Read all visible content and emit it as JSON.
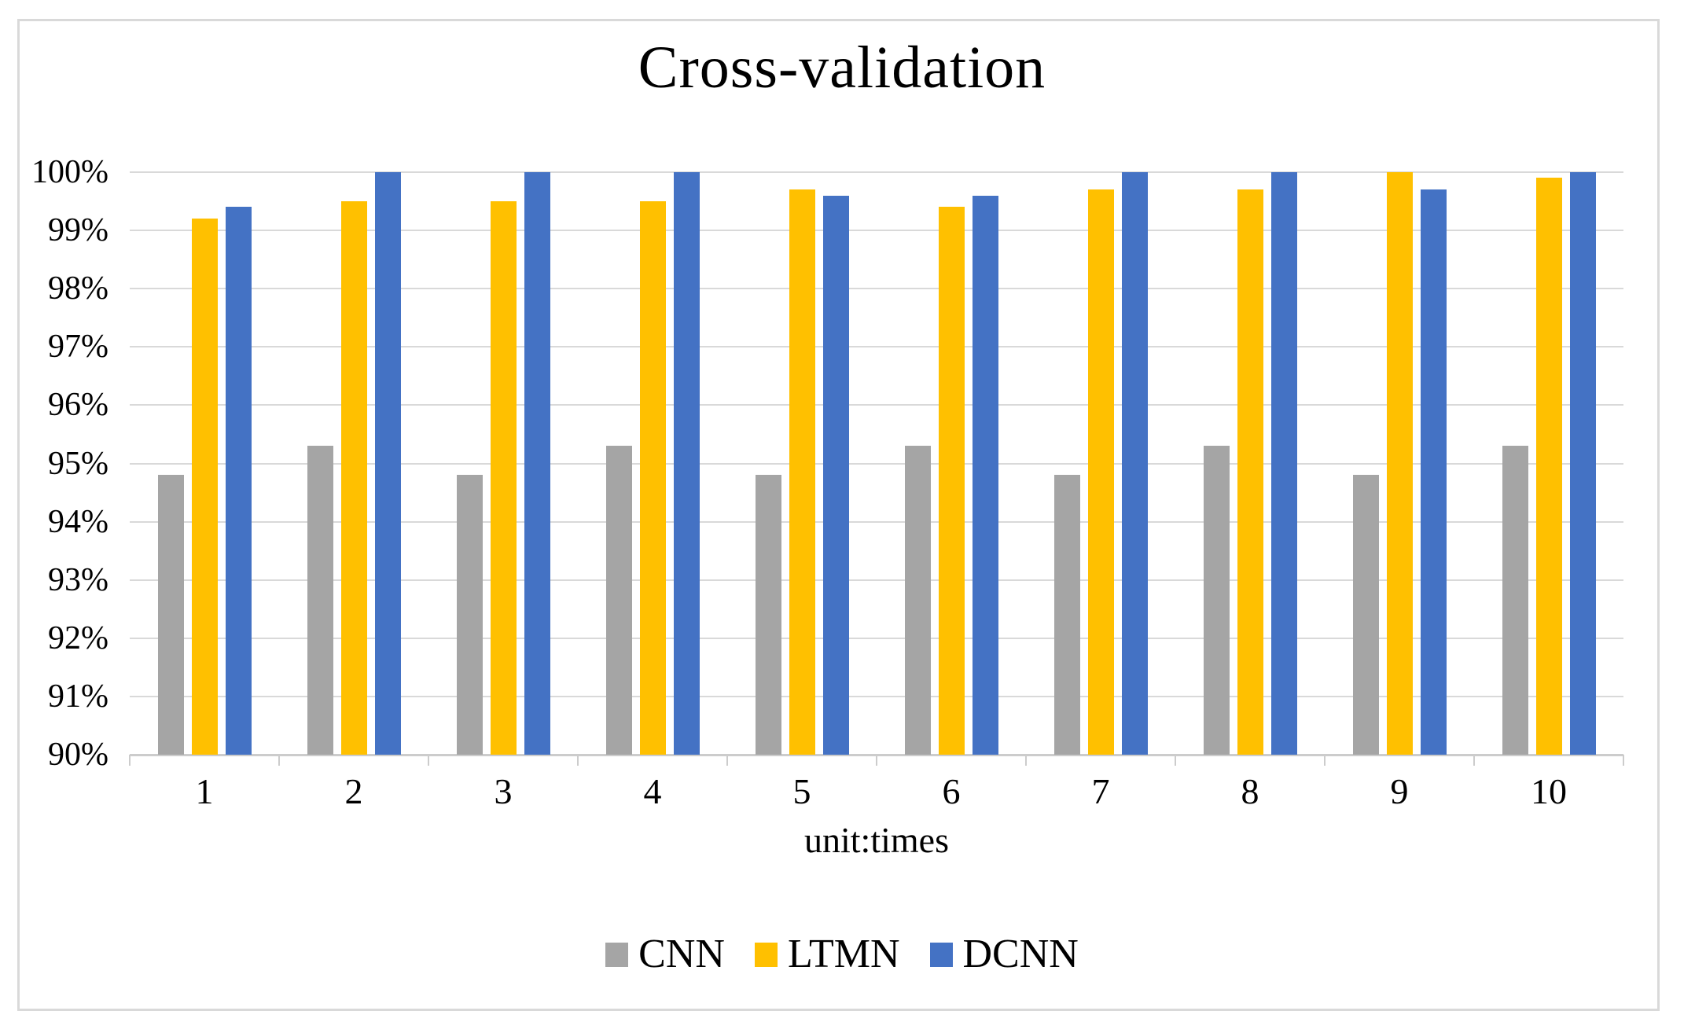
{
  "window": {
    "background": "#FFFFFF",
    "border_color": "#D9D9D9"
  },
  "chart_data": {
    "type": "bar",
    "title": "Cross-validation",
    "xlabel": "unit:times",
    "ylabel": "",
    "categories": [
      "1",
      "2",
      "3",
      "4",
      "5",
      "6",
      "7",
      "8",
      "9",
      "10"
    ],
    "series": [
      {
        "name": "CNN",
        "color": "#A5A5A5",
        "values": [
          94.8,
          95.3,
          94.8,
          95.3,
          94.8,
          95.3,
          94.8,
          95.3,
          94.8,
          95.3
        ]
      },
      {
        "name": "LTMN",
        "color": "#FFC000",
        "values": [
          99.2,
          99.5,
          99.5,
          99.5,
          99.7,
          99.4,
          99.7,
          99.7,
          100,
          99.9
        ]
      },
      {
        "name": "DCNN",
        "color": "#4472C4",
        "values": [
          99.4,
          100,
          100,
          100,
          99.6,
          99.6,
          100,
          100,
          99.7,
          100
        ]
      }
    ],
    "ylim": [
      90,
      100
    ],
    "y_tick_labels": [
      "90%",
      "91%",
      "92%",
      "93%",
      "94%",
      "95%",
      "96%",
      "97%",
      "98%",
      "99%",
      "100%"
    ],
    "grid": true,
    "gridline_color": "#D9D9D9",
    "axis_color": "#CCCCCC",
    "text_color": "#000000",
    "legend_position": "bottom"
  }
}
